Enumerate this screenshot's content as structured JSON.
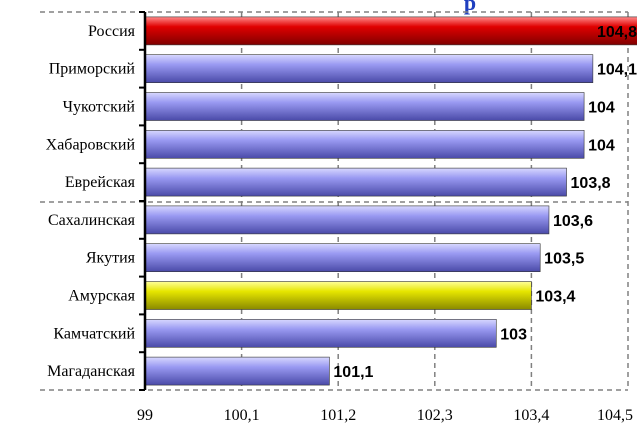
{
  "chart_data": {
    "type": "bar",
    "orientation": "horizontal",
    "title": "…, …п…",
    "title_visible_fragment": "р",
    "categories": [
      "Россия",
      "Приморский",
      "Чукотский",
      "Хабаровский",
      "Еврейская",
      "Сахалинская",
      "Якутия",
      "Амурская",
      "Камчатский",
      "Магаданская"
    ],
    "values": [
      104.8,
      104.1,
      104,
      104,
      103.8,
      103.6,
      103.5,
      103.4,
      103,
      101.1
    ],
    "value_labels": [
      "104,8",
      "104,1",
      "104",
      "104",
      "103,8",
      "103,6",
      "103,5",
      "103,4",
      "103",
      "101,1"
    ],
    "xticks": [
      "99",
      "100,1",
      "101,2",
      "102,3",
      "103,4",
      "104,5"
    ],
    "xlim": [
      99,
      104.5
    ],
    "grid": true,
    "bar_colors": [
      "#e00000",
      "#8c8cf0",
      "#8c8cf0",
      "#8c8cf0",
      "#8c8cf0",
      "#8c8cf0",
      "#8c8cf0",
      "#e6e600",
      "#8c8cf0",
      "#8c8cf0"
    ]
  }
}
